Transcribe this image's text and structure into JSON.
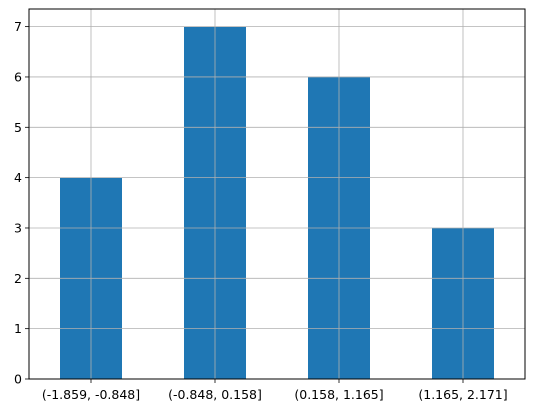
{
  "chart_data": {
    "type": "bar",
    "categories": [
      "(-1.859, -0.848]",
      "(-0.848, 0.158]",
      "(0.158, 1.165]",
      "(1.165, 2.171]"
    ],
    "values": [
      4,
      7,
      6,
      3
    ],
    "title": "",
    "xlabel": "",
    "ylabel": "",
    "ylim": [
      0,
      7.35
    ],
    "yticks": [
      0,
      1,
      2,
      3,
      4,
      5,
      6,
      7
    ],
    "grid": true,
    "bar_color": "#1f77b4",
    "grid_color": "#b0b0b0"
  }
}
